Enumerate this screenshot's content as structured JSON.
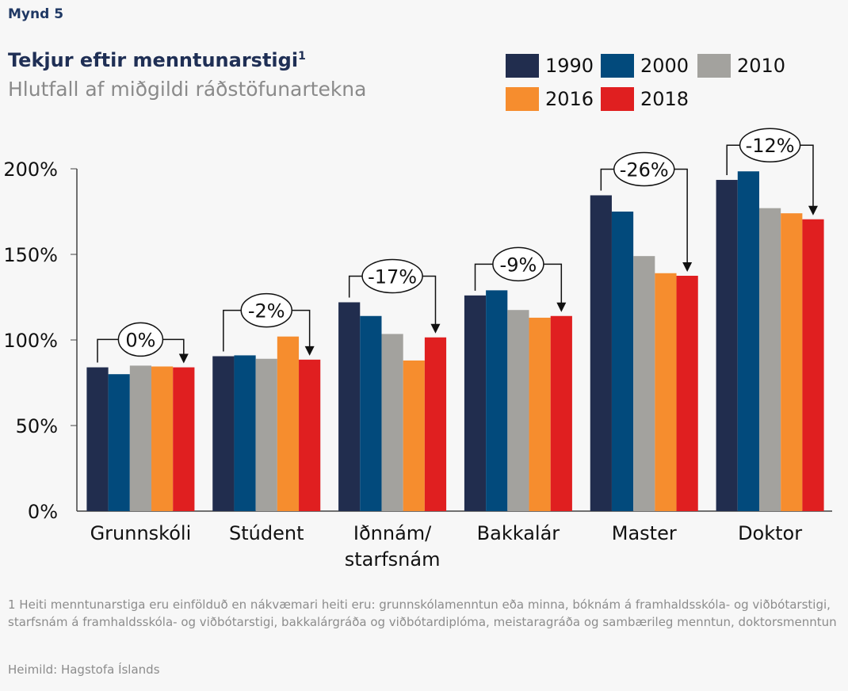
{
  "figure_label": "Mynd 5",
  "title": "Tekjur eftir menntunarstigi",
  "title_superscript": "1",
  "subtitle": "Hlutfall af miðgildi ráðstöfunartekna",
  "footnote": "1 Heiti menntunarstiga eru einfölduð en nákvæmari heiti eru: grunnskólamenntun eða minna, bóknám á framhaldsskóla- og viðbótarstigi,  starfsnám á framhaldsskóla- og viðbótarstigi, bakkalárgráða og viðbótardiplóma, meistaragráða og sambærileg menntun, doktorsmenntun",
  "source": "Heimild: Hagstofa Íslands",
  "chart_data": {
    "type": "bar",
    "title": "Tekjur eftir menntunarstigi",
    "subtitle": "Hlutfall af miðgildi ráðstöfunartekna",
    "categories": [
      [
        "Grunnskóli"
      ],
      [
        "Stúdent"
      ],
      [
        "Iðnnám/",
        "starfsnám"
      ],
      [
        "Bakkalár"
      ],
      [
        "Master"
      ],
      [
        "Doktor"
      ]
    ],
    "y_ticks": [
      "0%",
      "50%",
      "100%",
      "150%",
      "200%"
    ],
    "y_tick_values": [
      0,
      50,
      100,
      150,
      200
    ],
    "ylim": [
      0,
      200
    ],
    "legend_position": "top-right",
    "series": [
      {
        "name": "1990",
        "color": "#212d4e",
        "values": [
          84,
          90.5,
          122,
          126,
          184.5,
          193.5
        ]
      },
      {
        "name": "2000",
        "color": "#024a7c",
        "values": [
          80,
          91,
          114,
          129,
          175,
          198.5
        ]
      },
      {
        "name": "2010",
        "color": "#a3a29e",
        "values": [
          85,
          89,
          103.5,
          117.5,
          149,
          177
        ]
      },
      {
        "name": "2016",
        "color": "#f68d2e",
        "values": [
          84.5,
          102,
          88,
          113,
          139,
          174
        ]
      },
      {
        "name": "2018",
        "color": "#e01f20",
        "values": [
          84,
          88.5,
          101.5,
          114,
          137.5,
          170.5
        ]
      }
    ],
    "annotations": [
      "0%",
      "-2%",
      "-17%",
      "-9%",
      "-26%",
      "-12%"
    ]
  }
}
